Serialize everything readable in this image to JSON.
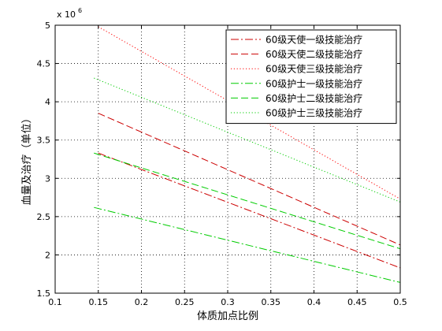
{
  "chart_data": {
    "type": "line",
    "xlabel": "体质加点比例",
    "ylabel": "血量及治疗（单位）",
    "multiplier_base": "x 10",
    "multiplier_exp": "6",
    "xlim": [
      0.1,
      0.5
    ],
    "ylim": [
      1.5,
      5
    ],
    "xticks": [
      0.1,
      0.15,
      0.2,
      0.25,
      0.3,
      0.35,
      0.4,
      0.45,
      0.5
    ],
    "xtick_labels": [
      "0.1",
      "0.15",
      "0.2",
      "0.25",
      "0.3",
      "0.35",
      "0.4",
      "0.45",
      "0.5"
    ],
    "yticks": [
      1.5,
      2,
      2.5,
      3,
      3.5,
      4,
      4.5,
      5
    ],
    "ytick_labels": [
      "1.5",
      "2",
      "2.5",
      "3",
      "3.5",
      "4",
      "4.5",
      "5"
    ],
    "grid": true,
    "legend_position": "top-right",
    "series": [
      {
        "name": "60级天使一级技能治疗",
        "color": "#cc0000",
        "dash": "dashdot",
        "x": [
          0.15,
          0.5
        ],
        "y": [
          3.33,
          1.83
        ]
      },
      {
        "name": "60级天使二级技能治疗",
        "color": "#cc0000",
        "dash": "dashed",
        "x": [
          0.15,
          0.5
        ],
        "y": [
          3.85,
          2.13
        ]
      },
      {
        "name": "60级天使三级技能治疗",
        "color": "#ff0000",
        "dash": "dotted",
        "x": [
          0.15,
          0.5
        ],
        "y": [
          4.98,
          2.73
        ]
      },
      {
        "name": "60级护士一级技能治疗",
        "color": "#00cc00",
        "dash": "dashdot",
        "x": [
          0.145,
          0.5
        ],
        "y": [
          2.62,
          1.64
        ]
      },
      {
        "name": "60级护士二级技能治疗",
        "color": "#00cc00",
        "dash": "dashed",
        "x": [
          0.145,
          0.5
        ],
        "y": [
          3.33,
          2.08
        ]
      },
      {
        "name": "60级护士三级技能治疗",
        "color": "#00cc00",
        "dash": "dotted",
        "x": [
          0.145,
          0.5
        ],
        "y": [
          4.31,
          2.69
        ]
      }
    ]
  }
}
